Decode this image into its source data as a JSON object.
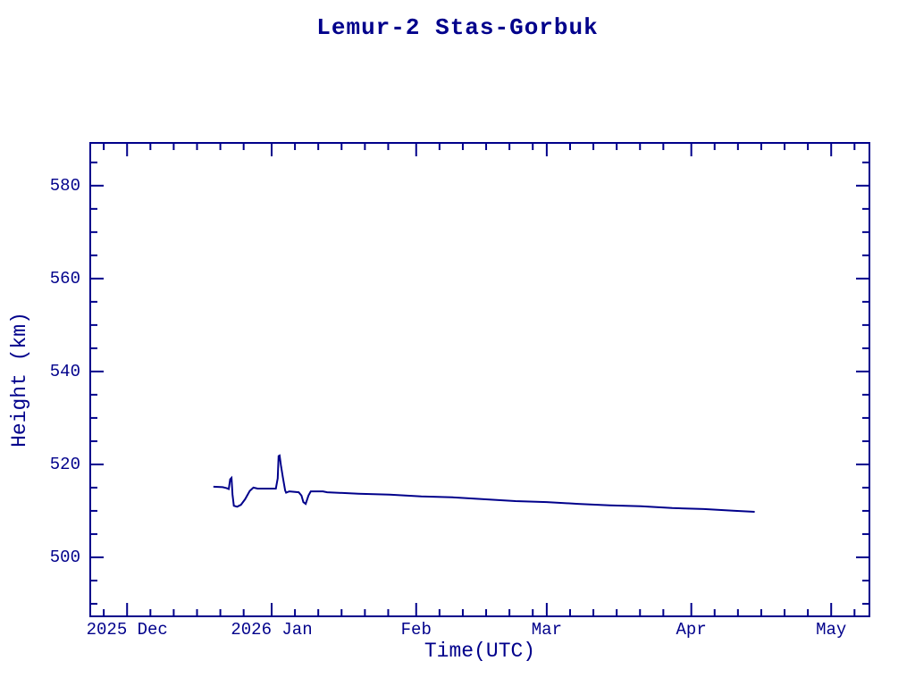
{
  "page": {
    "background": "#ffffff",
    "ink_color": "#00008B"
  },
  "chart_data": {
    "type": "line",
    "title": "Lemur-2 Stas-Gorbuk",
    "xlabel": "Time(UTC)",
    "ylabel": "Height (km)",
    "legend": "none",
    "grid": false,
    "x_unit": "days since 2025-12-01 (UTC)",
    "xlim": [
      -7.9,
      159.2
    ],
    "ylim": [
      487.3,
      589.2
    ],
    "x_major_ticks": [
      {
        "label": "2025 Dec",
        "day": 0
      },
      {
        "label": "2026 Jan",
        "day": 31
      },
      {
        "label": "Feb",
        "day": 62
      },
      {
        "label": "Mar",
        "day": 90
      },
      {
        "label": "Apr",
        "day": 121
      },
      {
        "label": "May",
        "day": 151
      }
    ],
    "x_minor_tick_month_starts": [
      -30,
      0,
      31,
      62,
      90,
      121,
      151
    ],
    "x_minor_tick_day_offsets": [
      5,
      10,
      15,
      20,
      25
    ],
    "y_major_ticks": [
      500,
      520,
      540,
      560,
      580
    ],
    "y_minor_tick_step": 5,
    "y_minor_tick_range": [
      490,
      585
    ],
    "series": [
      {
        "name": "Lemur-2 Stas-Gorbuk height",
        "color": "#00008B",
        "points_day_height_km": [
          [
            18.5,
            515.2
          ],
          [
            20.5,
            515.1
          ],
          [
            21.3,
            514.9
          ],
          [
            21.8,
            514.7
          ],
          [
            22.1,
            516.8
          ],
          [
            22.4,
            517.1
          ],
          [
            22.6,
            513.5
          ],
          [
            22.9,
            511.1
          ],
          [
            23.6,
            510.9
          ],
          [
            24.4,
            511.3
          ],
          [
            25.3,
            512.5
          ],
          [
            26.3,
            514.3
          ],
          [
            27.1,
            515.0
          ],
          [
            28.0,
            514.8
          ],
          [
            31.9,
            514.8
          ],
          [
            32.3,
            517.0
          ],
          [
            32.5,
            521.8
          ],
          [
            32.7,
            521.9
          ],
          [
            33.0,
            519.8
          ],
          [
            33.4,
            517.3
          ],
          [
            33.9,
            514.4
          ],
          [
            34.1,
            513.9
          ],
          [
            34.8,
            514.2
          ],
          [
            36.8,
            514.0
          ],
          [
            37.4,
            513.3
          ],
          [
            37.8,
            511.9
          ],
          [
            38.3,
            511.5
          ],
          [
            38.9,
            513.3
          ],
          [
            39.4,
            514.2
          ],
          [
            42.0,
            514.2
          ],
          [
            42.9,
            514.0
          ],
          [
            49.6,
            513.7
          ],
          [
            56.3,
            513.5
          ],
          [
            63.1,
            513.1
          ],
          [
            69.8,
            512.9
          ],
          [
            76.5,
            512.5
          ],
          [
            83.3,
            512.1
          ],
          [
            90.0,
            511.9
          ],
          [
            96.7,
            511.5
          ],
          [
            103.5,
            511.2
          ],
          [
            110.2,
            511.0
          ],
          [
            116.9,
            510.6
          ],
          [
            123.7,
            510.4
          ],
          [
            130.4,
            510.0
          ],
          [
            134.6,
            509.8
          ]
        ]
      }
    ]
  }
}
